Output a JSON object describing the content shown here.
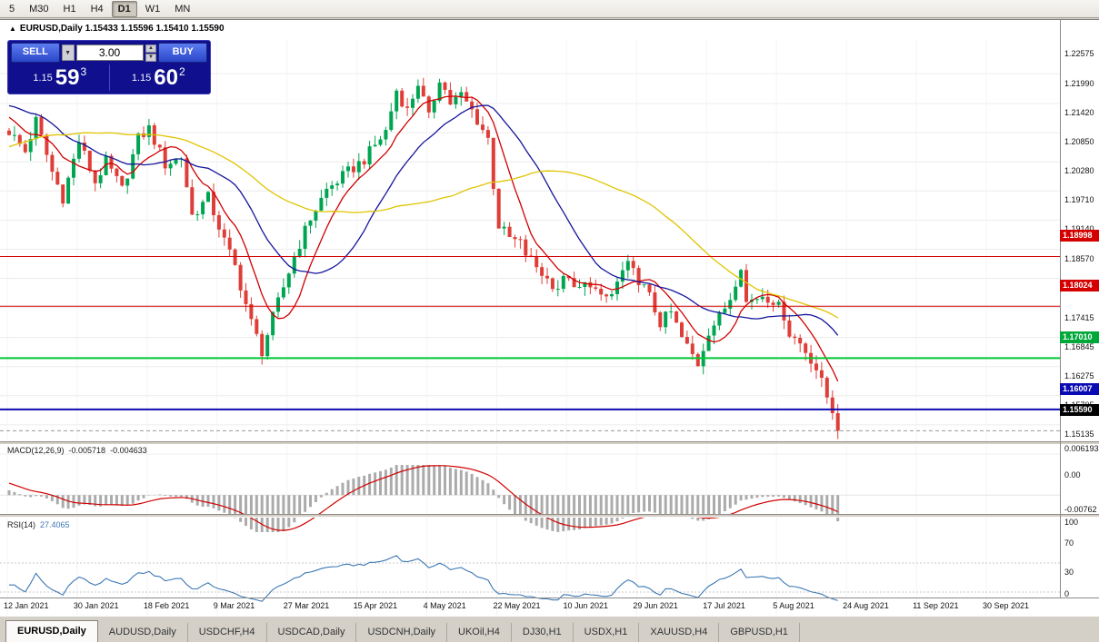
{
  "toolbar": {
    "timeframes": [
      {
        "label": "5",
        "active": false
      },
      {
        "label": "M30",
        "active": false
      },
      {
        "label": "H1",
        "active": false
      },
      {
        "label": "H4",
        "active": false
      },
      {
        "label": "D1",
        "active": true
      },
      {
        "label": "W1",
        "active": false
      },
      {
        "label": "MN",
        "active": false
      }
    ]
  },
  "chart_header": {
    "collapse_icon": "▲",
    "symbol_period": "EURUSD,Daily",
    "ohlc": "1.15433 1.15596 1.15410 1.15590"
  },
  "trade_panel": {
    "sell_label": "SELL",
    "buy_label": "BUY",
    "volume": "3.00",
    "dropdown_icon": "▼",
    "spin_up_icon": "▲",
    "spin_down_icon": "▼",
    "sell_price": {
      "small": "1.15",
      "big": "59",
      "sup": "3"
    },
    "buy_price": {
      "small": "1.15",
      "big": "60",
      "sup": "2"
    }
  },
  "price_badges": [
    {
      "value": "1.18998",
      "color": "#d40000"
    },
    {
      "value": "1.18024",
      "color": "#d40000"
    },
    {
      "value": "1.17010",
      "color": "#00a83a"
    },
    {
      "value": "1.16007",
      "color": "#0b0bb4"
    },
    {
      "value": "1.15590",
      "color": "#000000"
    }
  ],
  "macd_panel": {
    "label": "MACD(12,26,9)",
    "value_main": "-0.005718",
    "value_signal": "-0.004633",
    "axis_labels": [
      "0.006193",
      "0.00",
      "-0.00762"
    ]
  },
  "rsi_panel": {
    "label": "RSI(14)",
    "value": "27.4065",
    "axis_labels": [
      "100",
      "70",
      "30",
      "0"
    ]
  },
  "tabs": [
    {
      "label": "EURUSD,Daily",
      "active": true
    },
    {
      "label": "AUDUSD,Daily",
      "active": false
    },
    {
      "label": "USDCHF,H4",
      "active": false
    },
    {
      "label": "USDCAD,Daily",
      "active": false
    },
    {
      "label": "USDCNH,Daily",
      "active": false
    },
    {
      "label": "UKOil,H4",
      "active": false
    },
    {
      "label": "DJ30,H1",
      "active": false
    },
    {
      "label": "USDX,H1",
      "active": false
    },
    {
      "label": "XAUUSD,H4",
      "active": false
    },
    {
      "label": "GBPUSD,H1",
      "active": false
    }
  ],
  "chart_data": {
    "type": "candlestick",
    "symbol": "EURUSD",
    "timeframe": "Daily",
    "ohlc_last": {
      "open": 1.15433,
      "high": 1.15596,
      "low": 1.1541,
      "close": 1.1559
    },
    "current_price": 1.1559,
    "x_labels": [
      "12 Jan 2021",
      "30 Jan 2021",
      "18 Feb 2021",
      "9 Mar 2021",
      "27 Mar 2021",
      "15 Apr 2021",
      "4 May 2021",
      "22 May 2021",
      "10 Jun 2021",
      "29 Jun 2021",
      "17 Jul 2021",
      "5 Aug 2021",
      "24 Aug 2021",
      "11 Sep 2021",
      "30 Sep 2021"
    ],
    "y_ticks": [
      1.22575,
      1.2199,
      1.2142,
      1.2085,
      1.2028,
      1.1971,
      1.1914,
      1.1857,
      1.17415,
      1.16845,
      1.16275,
      1.15705,
      1.15135
    ],
    "y_grid_extra": [
      1.18
    ],
    "price_axis_range": [
      1.1496,
      1.2318
    ],
    "horizontal_lines": [
      {
        "price": 1.18998,
        "color": "#d40000",
        "width": 1
      },
      {
        "price": 1.18024,
        "color": "#d40000",
        "width": 1
      },
      {
        "price": 1.1701,
        "color": "#00c832",
        "width": 2
      },
      {
        "price": 1.16007,
        "color": "#0b0bb4",
        "width": 2
      }
    ],
    "moving_averages": [
      {
        "type": "sma",
        "period": 8,
        "color": "#d10000"
      },
      {
        "type": "sma",
        "period": 20,
        "color": "#16169b"
      },
      {
        "type": "sma",
        "period": 50,
        "color": "#e0c400"
      }
    ],
    "indicators": [
      {
        "name": "MACD",
        "params": [
          12,
          26,
          9
        ],
        "display_values": [
          -0.005718,
          -0.004633
        ],
        "y_range": [
          -0.00762,
          0.006193
        ],
        "histogram_color": "#ababab",
        "signal_color": "#d10000"
      },
      {
        "name": "RSI",
        "params": [
          14
        ],
        "display_value": 27.4065,
        "levels": [
          70,
          30
        ],
        "color": "#3c78b4"
      }
    ],
    "candles_approx": {
      "count": 155,
      "noise": 0.0012,
      "wick": 0.0018,
      "note": "approximate daily closes Jan-Oct 2021, [index, close] anchors; negative indices are off-screen warmup bars",
      "anchors": [
        [
          -60,
          1.19
        ],
        [
          -45,
          1.198
        ],
        [
          -30,
          1.21
        ],
        [
          -12,
          1.223
        ],
        [
          -5,
          1.218
        ],
        [
          0,
          1.2145
        ],
        [
          3,
          1.2105
        ],
        [
          5,
          1.2165
        ],
        [
          8,
          1.2065
        ],
        [
          10,
          1.2015
        ],
        [
          13,
          1.2125
        ],
        [
          16,
          1.2045
        ],
        [
          18,
          1.2085
        ],
        [
          21,
          1.203
        ],
        [
          24,
          1.213
        ],
        [
          26,
          1.215
        ],
        [
          29,
          1.208
        ],
        [
          32,
          1.2095
        ],
        [
          34,
          1.198
        ],
        [
          37,
          1.2015
        ],
        [
          40,
          1.193
        ],
        [
          42,
          1.188
        ],
        [
          45,
          1.177
        ],
        [
          47,
          1.1715
        ],
        [
          49,
          1.178
        ],
        [
          53,
          1.19
        ],
        [
          56,
          1.1975
        ],
        [
          59,
          1.203
        ],
        [
          63,
          1.2065
        ],
        [
          66,
          1.209
        ],
        [
          70,
          1.2145
        ],
        [
          72,
          1.2225
        ],
        [
          74,
          1.2185
        ],
        [
          76,
          1.224
        ],
        [
          78,
          1.217
        ],
        [
          80,
          1.225
        ],
        [
          82,
          1.22
        ],
        [
          84,
          1.2215
        ],
        [
          86,
          1.2185
        ],
        [
          89,
          1.213
        ],
        [
          90,
          1.204
        ],
        [
          91,
          1.196
        ],
        [
          93,
          1.1935
        ],
        [
          95,
          1.1925
        ],
        [
          96,
          1.1905
        ],
        [
          98,
          1.188
        ],
        [
          100,
          1.1855
        ],
        [
          102,
          1.184
        ],
        [
          104,
          1.1865
        ],
        [
          105,
          1.183
        ],
        [
          108,
          1.185
        ],
        [
          110,
          1.1815
        ],
        [
          112,
          1.1825
        ],
        [
          114,
          1.187
        ],
        [
          115,
          1.188
        ],
        [
          117,
          1.1855
        ],
        [
          119,
          1.182
        ],
        [
          121,
          1.177
        ],
        [
          123,
          1.179
        ],
        [
          125,
          1.174
        ],
        [
          128,
          1.169
        ],
        [
          130,
          1.1755
        ],
        [
          132,
          1.178
        ],
        [
          134,
          1.182
        ],
        [
          136,
          1.1885
        ],
        [
          137,
          1.181
        ],
        [
          140,
          1.1825
        ],
        [
          142,
          1.1815
        ],
        [
          144,
          1.1785
        ],
        [
          145,
          1.175
        ],
        [
          147,
          1.173
        ],
        [
          149,
          1.17
        ],
        [
          150,
          1.168
        ],
        [
          152,
          1.1625
        ],
        [
          153,
          1.16
        ],
        [
          154,
          1.1559
        ]
      ]
    }
  }
}
